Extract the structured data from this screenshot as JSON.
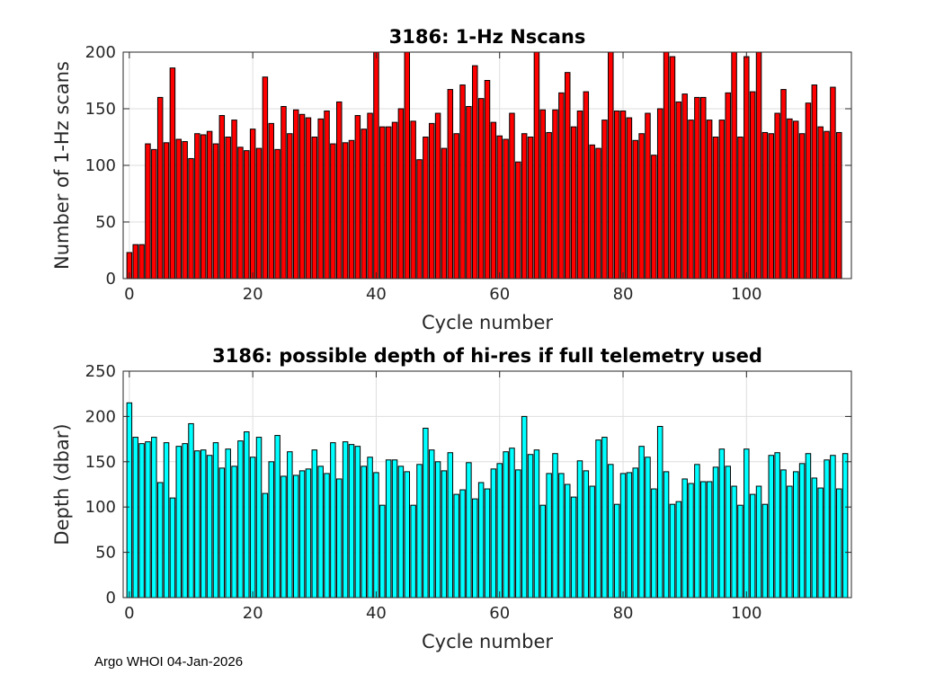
{
  "footer": "Argo WHOI 04-Jan-2026",
  "chart_data": [
    {
      "type": "bar",
      "title": "3186: 1-Hz Nscans",
      "xlabel": "Cycle number",
      "ylabel": "Number of 1-Hz scans",
      "color": "#ff0000",
      "grid": true,
      "xlim": [
        -1,
        117
      ],
      "ylim": [
        0,
        200
      ],
      "xticks": [
        0,
        20,
        40,
        60,
        80,
        100
      ],
      "yticks": [
        0,
        50,
        100,
        150,
        200
      ],
      "x_start": 0,
      "values": [
        23,
        30,
        30,
        119,
        114,
        160,
        120,
        186,
        123,
        121,
        106,
        128,
        127,
        130,
        119,
        144,
        125,
        140,
        116,
        113,
        132,
        115,
        178,
        137,
        114,
        152,
        128,
        149,
        145,
        142,
        125,
        141,
        148,
        119,
        156,
        120,
        122,
        144,
        132,
        146,
        201,
        134,
        134,
        138,
        150,
        201,
        139,
        105,
        125,
        137,
        146,
        115,
        167,
        128,
        171,
        152,
        188,
        159,
        175,
        138,
        126,
        123,
        146,
        103,
        128,
        125,
        201,
        149,
        129,
        149,
        164,
        182,
        134,
        148,
        165,
        118,
        115,
        140,
        201,
        148,
        148,
        142,
        122,
        128,
        146,
        109,
        150,
        201,
        196,
        156,
        163,
        140,
        160,
        160,
        140,
        125,
        140,
        164,
        201,
        125,
        196,
        165,
        201,
        129,
        128,
        146,
        167,
        141,
        139,
        128,
        155,
        171,
        134,
        130,
        169,
        129
      ]
    },
    {
      "type": "bar",
      "title": "3186: possible depth of hi-res if full telemetry used",
      "xlabel": "Cycle number",
      "ylabel": "Depth (dbar)",
      "color": "#00ffff",
      "grid": true,
      "xlim": [
        -1,
        117
      ],
      "ylim": [
        0,
        250
      ],
      "xticks": [
        0,
        20,
        40,
        60,
        80,
        100
      ],
      "yticks": [
        0,
        50,
        100,
        150,
        200,
        250
      ],
      "x_start": 0,
      "values": [
        215,
        177,
        170,
        172,
        177,
        127,
        171,
        110,
        167,
        170,
        192,
        162,
        163,
        157,
        171,
        143,
        164,
        145,
        173,
        183,
        155,
        177,
        115,
        150,
        179,
        134,
        161,
        135,
        140,
        142,
        163,
        145,
        137,
        171,
        131,
        172,
        169,
        167,
        145,
        155,
        138,
        102,
        152,
        152,
        145,
        139,
        102,
        147,
        187,
        163,
        150,
        140,
        160,
        114,
        119,
        149,
        109,
        127,
        120,
        142,
        148,
        161,
        165,
        141,
        200,
        158,
        163,
        102,
        137,
        159,
        137,
        125,
        111,
        151,
        140,
        123,
        174,
        177,
        147,
        103,
        137,
        138,
        143,
        167,
        155,
        120,
        189,
        139,
        103,
        106,
        131,
        126,
        147,
        128,
        128,
        144,
        164,
        145,
        123,
        102,
        164,
        114,
        123,
        103,
        157,
        160,
        141,
        123,
        139,
        148,
        159,
        132,
        121,
        152,
        157,
        120,
        159
      ]
    }
  ]
}
